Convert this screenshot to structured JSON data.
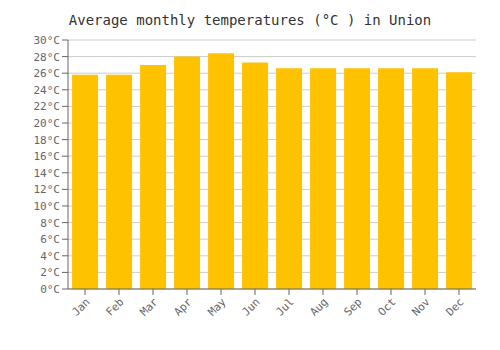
{
  "chart_data": {
    "type": "bar",
    "title": "Average monthly temperatures (°C ) in Union",
    "categories": [
      "Jan",
      "Feb",
      "Mar",
      "Apr",
      "May",
      "Jun",
      "Jul",
      "Aug",
      "Sep",
      "Oct",
      "Nov",
      "Dec"
    ],
    "values": [
      25.8,
      25.8,
      27.0,
      28.0,
      28.4,
      27.3,
      26.6,
      26.6,
      26.6,
      26.6,
      26.6,
      26.1
    ],
    "color": "#FFC200",
    "ylim": [
      0,
      30
    ],
    "yticks": [
      {
        "value": 0,
        "label": "0°C"
      },
      {
        "value": 2,
        "label": "2°C"
      },
      {
        "value": 4,
        "label": "4°C"
      },
      {
        "value": 6,
        "label": "6°C"
      },
      {
        "value": 8,
        "label": "8°C"
      },
      {
        "value": 10,
        "label": "10°C"
      },
      {
        "value": 12,
        "label": "12°C"
      },
      {
        "value": 14,
        "label": "14°C"
      },
      {
        "value": 16,
        "label": "16°C"
      },
      {
        "value": 18,
        "label": "18°C"
      },
      {
        "value": 20,
        "label": "20°C"
      },
      {
        "value": 22,
        "label": "22°C"
      },
      {
        "value": 24,
        "label": "24°C"
      },
      {
        "value": 26,
        "label": "26°C"
      },
      {
        "value": 28,
        "label": "28°C"
      },
      {
        "value": 30,
        "label": "30°C"
      }
    ],
    "grid": true
  }
}
